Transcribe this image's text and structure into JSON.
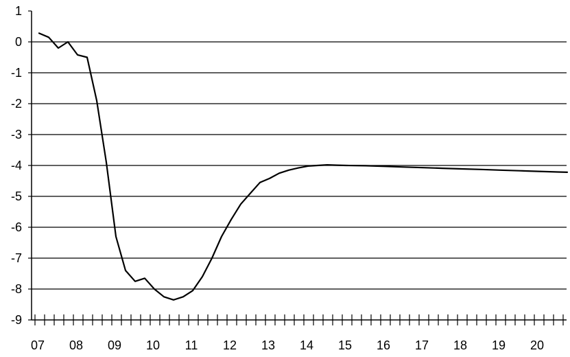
{
  "chart_data": {
    "type": "line",
    "title": "",
    "xlabel": "",
    "ylabel": "",
    "x_tick_labels": [
      "07",
      "08",
      "09",
      "10",
      "11",
      "12",
      "13",
      "14",
      "15",
      "16",
      "17",
      "18",
      "19",
      "20"
    ],
    "y_tick_labels": [
      "1",
      "0",
      "-1",
      "-2",
      "-3",
      "-4",
      "-5",
      "-6",
      "-7",
      "-8",
      "-9"
    ],
    "ylim": [
      -9,
      1
    ],
    "xlim": [
      2007.0,
      2021.0
    ],
    "grid": "horizontal",
    "legend": "none",
    "colors": {
      "line": "#000000",
      "grid": "#000000",
      "background": "#ffffff"
    },
    "series": [
      {
        "x": [
          2007.0,
          2007.25,
          2007.5,
          2007.75,
          2008.0,
          2008.25,
          2008.5,
          2008.75,
          2009.0,
          2009.25,
          2009.5,
          2009.75,
          2010.0,
          2010.25,
          2010.5,
          2010.75,
          2011.0,
          2011.25,
          2011.5,
          2011.75,
          2012.0,
          2012.25,
          2012.5,
          2012.75,
          2013.0,
          2013.25,
          2013.5,
          2013.75,
          2014.0,
          2014.25,
          2014.5,
          2014.75,
          2015.0,
          2015.5,
          2016.0,
          2016.5,
          2017.0,
          2017.5,
          2018.0,
          2018.5,
          2019.0,
          2019.5,
          2020.0,
          2020.5,
          2020.75
        ],
        "values": [
          0.28,
          0.15,
          -0.2,
          0.0,
          -0.42,
          -0.5,
          -1.9,
          -3.9,
          -6.3,
          -7.4,
          -7.75,
          -7.65,
          -8.0,
          -8.25,
          -8.35,
          -8.25,
          -8.05,
          -7.6,
          -7.0,
          -6.3,
          -5.75,
          -5.25,
          -4.9,
          -4.55,
          -4.42,
          -4.25,
          -4.15,
          -4.08,
          -4.02,
          -4.0,
          -3.98,
          -3.99,
          -4.0,
          -4.01,
          -4.03,
          -4.05,
          -4.07,
          -4.09,
          -4.11,
          -4.13,
          -4.15,
          -4.17,
          -4.19,
          -4.21,
          -4.22
        ]
      }
    ]
  }
}
